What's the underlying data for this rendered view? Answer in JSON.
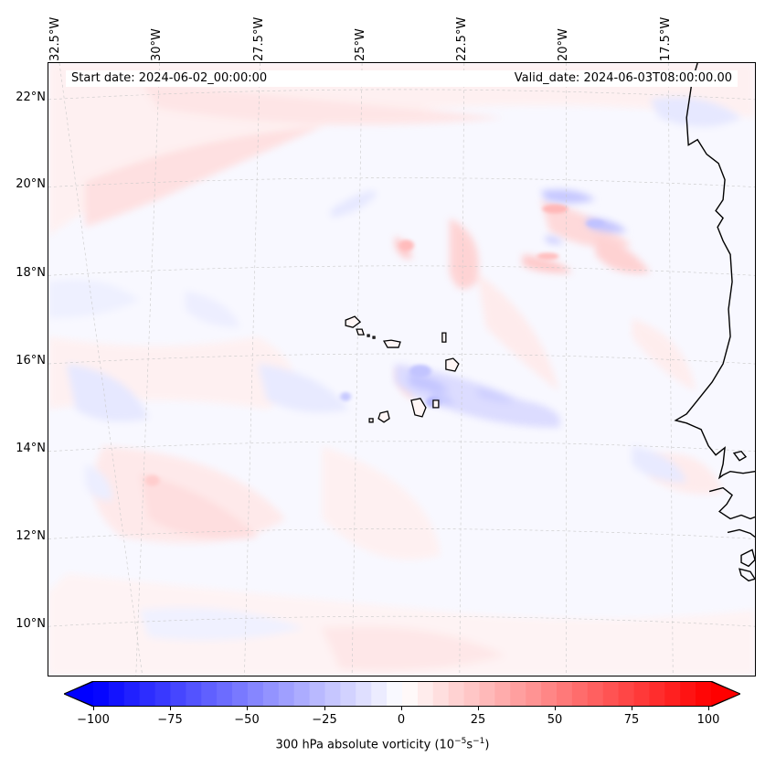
{
  "map": {
    "start_date": "Start date: 2024-06-02_00:00:00",
    "valid_date": "Valid_date: 2024-06-03T08:00:00.00",
    "longitude_labels": [
      "32.5°W",
      "30°W",
      "27.5°W",
      "25°W",
      "22.5°W",
      "20°W",
      "17.5°W"
    ],
    "latitude_labels": [
      "22°N",
      "20°N",
      "18°N",
      "16°N",
      "14°N",
      "12°N",
      "10°N"
    ],
    "field": "300 hPa absolute vorticity",
    "region": "Cabo Verde islands and West African coast"
  },
  "colorbar": {
    "label_prefix": "300 hPa absolute vorticity (10",
    "label_exp1": "−5",
    "label_mid": "s",
    "label_exp2": "−1",
    "label_suffix": ")",
    "ticks": [
      "−100",
      "−75",
      "−50",
      "−25",
      "0",
      "25",
      "50",
      "75",
      "100"
    ],
    "min": -100,
    "max": 100,
    "extend": "both",
    "colors": {
      "low": "#0000ff",
      "mid": "#ffffff",
      "high": "#ff0000"
    }
  },
  "style": {
    "grid_color": "#c8c8c8",
    "coast_color": "#000000"
  }
}
